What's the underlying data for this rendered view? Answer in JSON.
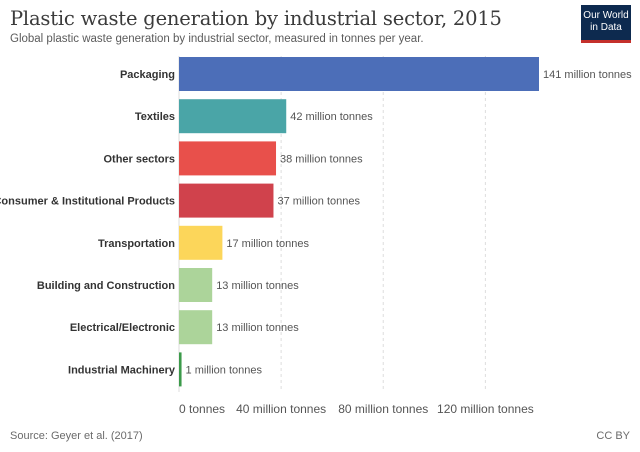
{
  "header": {
    "title": "Plastic waste generation by industrial sector, 2015",
    "subtitle": "Global plastic waste generation by industrial sector, measured in tonnes per year."
  },
  "logo": {
    "line1": "Our World",
    "line2": "in Data",
    "bg_color": "#0d2a4f",
    "accent_color": "#c4302b"
  },
  "footer": {
    "source": "Source: Geyer et al. (2017)",
    "license": "CC BY"
  },
  "chart_data": {
    "type": "bar",
    "orientation": "horizontal",
    "title": "Plastic waste generation by industrial sector, 2015",
    "subtitle": "Global plastic waste generation by industrial sector, measured in tonnes per year.",
    "xlabel": "",
    "ylabel": "",
    "xlim": [
      0,
      141
    ],
    "grid": "vertical dashed",
    "categories": [
      "Packaging",
      "Textiles",
      "Other sectors",
      "Consumer & Institutional Products",
      "Transportation",
      "Building and Construction",
      "Electrical/Electronic",
      "Industrial Machinery"
    ],
    "values": [
      141,
      42,
      38,
      37,
      17,
      13,
      13,
      1
    ],
    "value_labels": [
      "141 million tonnes",
      "42 million tonnes",
      "38 million tonnes",
      "37 million tonnes",
      "17 million tonnes",
      "13 million tonnes",
      "13 million tonnes",
      "1 million tonnes"
    ],
    "colors": [
      "#4c6eb8",
      "#4aa5a7",
      "#e8504b",
      "#d0424c",
      "#fcd65a",
      "#acd49a",
      "#acd49a",
      "#3c9a4a"
    ],
    "ticks": [
      0,
      40,
      80,
      120
    ],
    "tick_labels": [
      "0 tonnes",
      "40 million tonnes",
      "80 million tonnes",
      "120 million tonnes"
    ]
  }
}
